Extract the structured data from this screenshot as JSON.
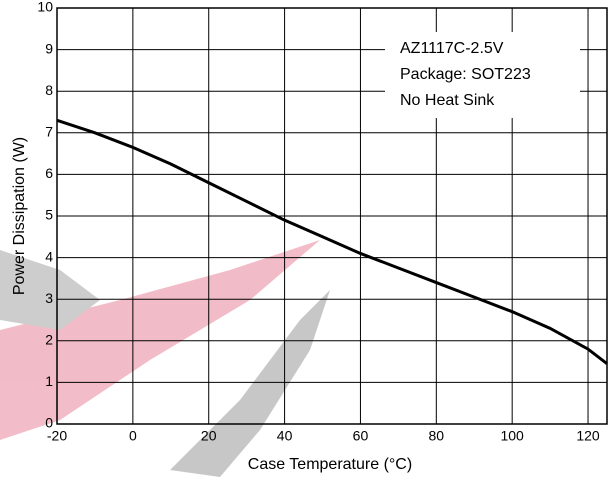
{
  "chart_data": {
    "type": "line",
    "x_label": "Case Temperature (°C)",
    "y_label": "Power Dissipation (W)",
    "annotations": [
      "AZ1117C-2.5V",
      "Package: SOT223",
      "No Heat Sink"
    ],
    "x": [
      -20,
      -10,
      0,
      10,
      20,
      30,
      40,
      50,
      60,
      70,
      80,
      90,
      100,
      110,
      120,
      125
    ],
    "values": [
      7.3,
      7.0,
      6.65,
      6.25,
      5.8,
      5.35,
      4.9,
      4.5,
      4.1,
      3.75,
      3.4,
      3.05,
      2.7,
      2.3,
      1.8,
      1.45
    ],
    "color": "#000000",
    "xlim": [
      -20,
      125
    ],
    "xticks": [
      -20,
      0,
      20,
      40,
      60,
      80,
      100,
      120
    ],
    "ylim": [
      0,
      10
    ],
    "yticks": [
      0,
      1,
      2,
      3,
      4,
      5,
      6,
      7,
      8,
      9,
      10
    ],
    "grid": true
  }
}
